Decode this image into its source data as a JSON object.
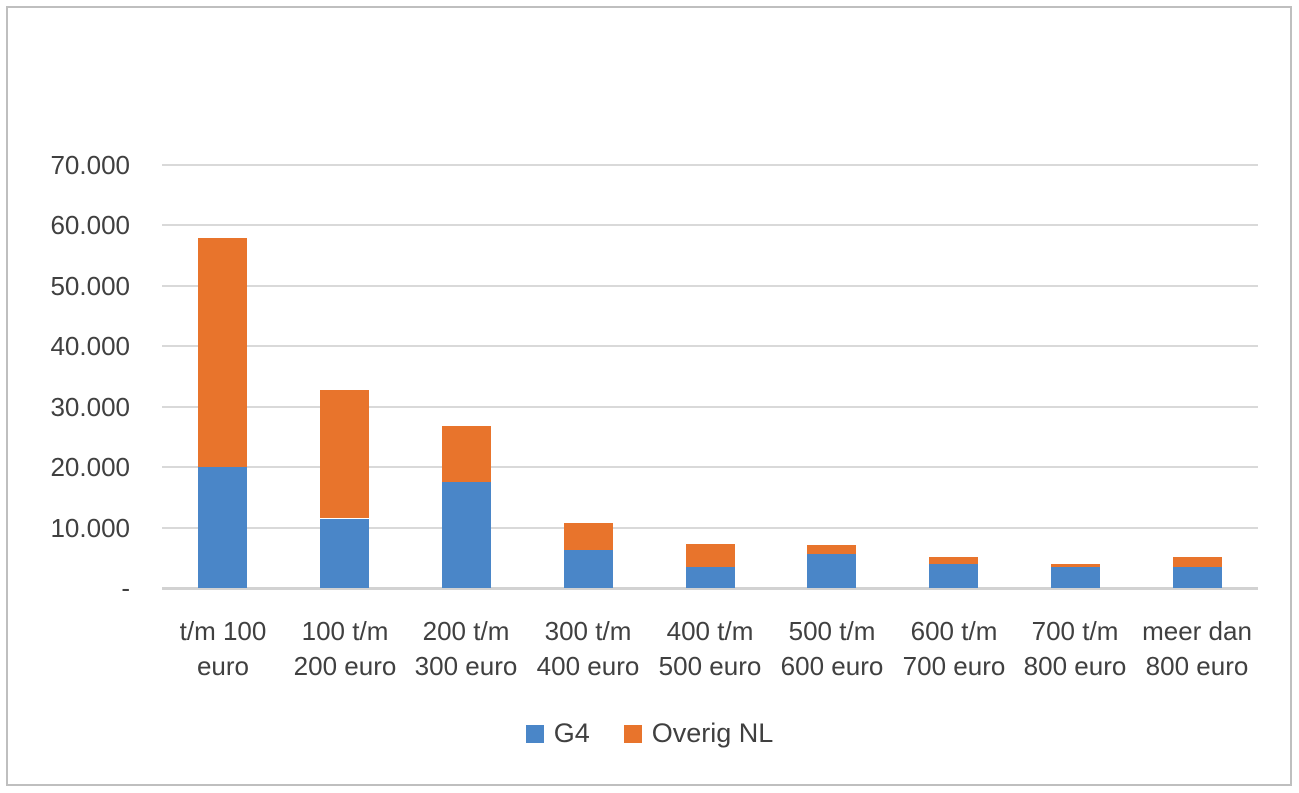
{
  "figure": {
    "background_color": "#ffffff",
    "border_color": "#bfbfbf",
    "gridline_color": "#d9d9d9",
    "axis_line_color": "#d2d2d2",
    "text_color": "#404040"
  },
  "chart_data": {
    "type": "bar",
    "stacked": true,
    "title": "",
    "xlabel": "",
    "ylabel": "",
    "grid": true,
    "legend_position": "bottom",
    "ylim": [
      0,
      70000
    ],
    "ytick_interval": 10000,
    "ytick_labels": [
      "-",
      "10.000",
      "20.000",
      "30.000",
      "40.000",
      "50.000",
      "60.000",
      "70.000"
    ],
    "categories": [
      "t/m 100 euro",
      "100 t/m 200 euro",
      "200 t/m 300 euro",
      "300 t/m 400 euro",
      "400 t/m 500 euro",
      "500 t/m 600 euro",
      "600 t/m 700 euro",
      "700 t/m 800 euro",
      "meer dan 800 euro"
    ],
    "category_label_lines": [
      [
        "t/m 100",
        "euro"
      ],
      [
        "100 t/m",
        "200 euro"
      ],
      [
        "200 t/m",
        "300 euro"
      ],
      [
        "300 t/m",
        "400 euro"
      ],
      [
        "400 t/m",
        "500 euro"
      ],
      [
        "500 t/m",
        "600 euro"
      ],
      [
        "600 t/m",
        "700 euro"
      ],
      [
        "700 t/m",
        "800 euro"
      ],
      [
        "meer dan",
        "800 euro"
      ]
    ],
    "series": [
      {
        "name": "G4",
        "color": "#4a86c8",
        "values": [
          20000,
          11500,
          17500,
          6300,
          3500,
          5700,
          4000,
          3400,
          3500
        ]
      },
      {
        "name": "Overig NL",
        "color": "#e8742c",
        "values": [
          38000,
          21200,
          9300,
          4500,
          3700,
          1400,
          1200,
          600,
          1600
        ]
      }
    ],
    "totals": [
      58000,
      32700,
      26800,
      10800,
      7200,
      7100,
      5200,
      4000,
      5100
    ]
  }
}
